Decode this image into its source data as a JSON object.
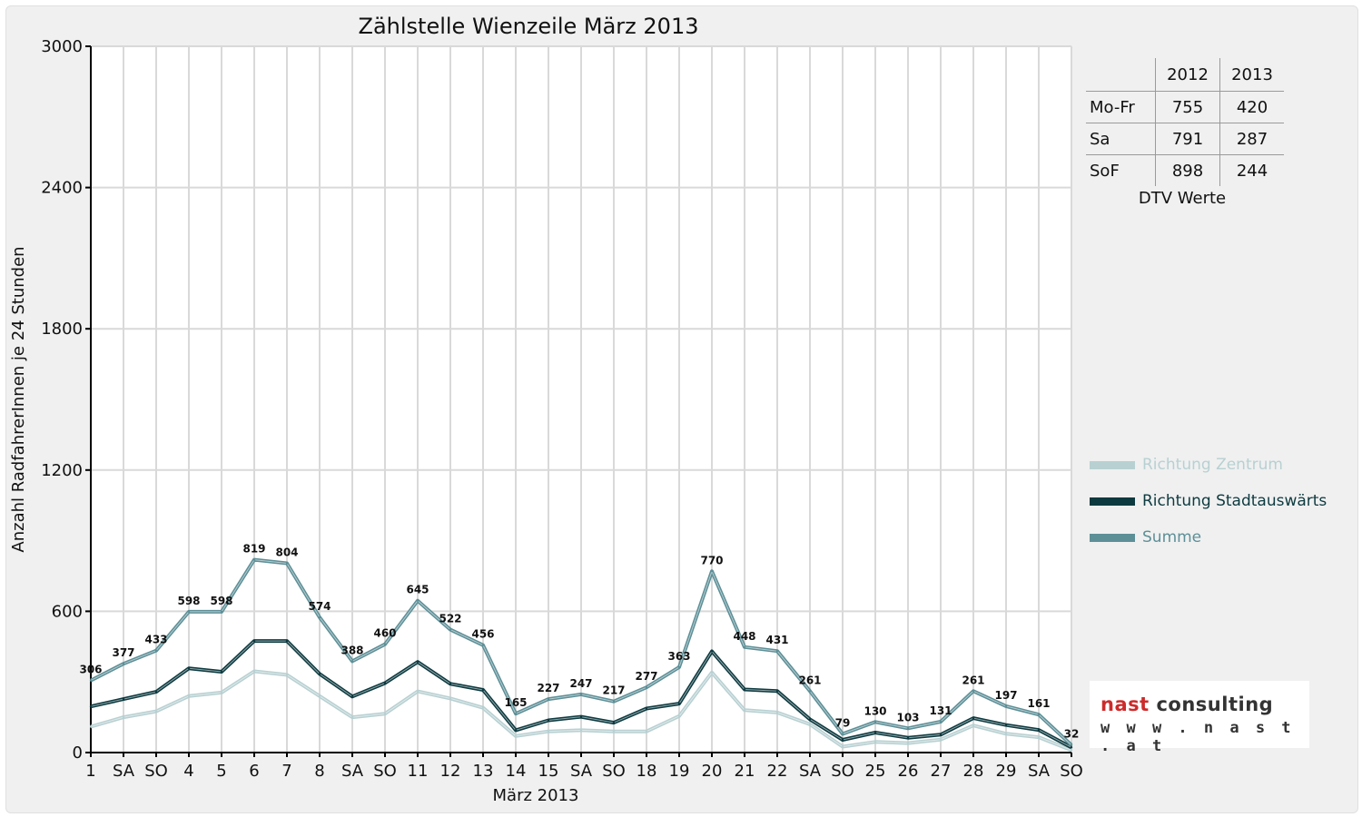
{
  "chart_data": {
    "type": "line",
    "title": "Zählstelle Wienzeile März 2013",
    "xlabel": "März 2013",
    "ylabel": "Anzahl RadfahrerInnen je 24 Stunden",
    "ylim": [
      0,
      3000
    ],
    "yticks": [
      "0",
      "600",
      "1200",
      "1800",
      "2400",
      "3000"
    ],
    "grid": true,
    "categories": [
      "1",
      "SA",
      "SO",
      "4",
      "5",
      "6",
      "7",
      "8",
      "SA",
      "SO",
      "11",
      "12",
      "13",
      "14",
      "15",
      "SA",
      "SO",
      "18",
      "19",
      "20",
      "21",
      "22",
      "SA",
      "SO",
      "25",
      "26",
      "27",
      "28",
      "29",
      "SA",
      "SO"
    ],
    "weekend_color": "#ee0000",
    "series": [
      {
        "name": "Richtung Zentrum",
        "color": "#b8d0d2",
        "values": [
          110,
          150,
          175,
          240,
          255,
          345,
          330,
          240,
          150,
          165,
          260,
          230,
          190,
          70,
          90,
          95,
          90,
          90,
          155,
          340,
          180,
          170,
          120,
          25,
          45,
          40,
          55,
          115,
          80,
          65,
          10
        ]
      },
      {
        "name": "Richtung Stadtauswärts",
        "color": "#0d3a40",
        "values": [
          196,
          227,
          258,
          358,
          343,
          474,
          474,
          334,
          238,
          295,
          385,
          292,
          266,
          95,
          137,
          152,
          127,
          187,
          208,
          430,
          268,
          261,
          141,
          54,
          85,
          63,
          76,
          146,
          117,
          96,
          22
        ]
      },
      {
        "name": "Summe",
        "color": "#5d8f97",
        "values": [
          306,
          377,
          433,
          598,
          598,
          819,
          804,
          574,
          388,
          460,
          645,
          522,
          456,
          165,
          227,
          247,
          217,
          277,
          363,
          770,
          448,
          431,
          261,
          79,
          130,
          103,
          131,
          261,
          197,
          161,
          32
        ],
        "labels": [
          "306",
          "377",
          "433",
          "598",
          "598",
          "819",
          "804",
          "574",
          "388",
          "460",
          "645",
          "522",
          "456",
          "165",
          "227",
          "247",
          "217",
          "277",
          "363",
          "770",
          "448",
          "431",
          "261",
          "79",
          "130",
          "103",
          "131",
          "261",
          "197",
          "161",
          "32"
        ]
      }
    ],
    "legend_position": "right"
  },
  "dtv_table": {
    "headers": [
      "",
      "2012",
      "2013"
    ],
    "rows": [
      {
        "label": "Mo-Fr",
        "v2012": "755",
        "v2013": "420"
      },
      {
        "label": "Sa",
        "v2012": "791",
        "v2013": "287"
      },
      {
        "label": "SoF",
        "v2012": "898",
        "v2013": "244"
      }
    ],
    "caption": "DTV Werte"
  },
  "logo": {
    "brand": "nast",
    "rest": " consulting",
    "url": "w w w . n a s t . a t"
  }
}
